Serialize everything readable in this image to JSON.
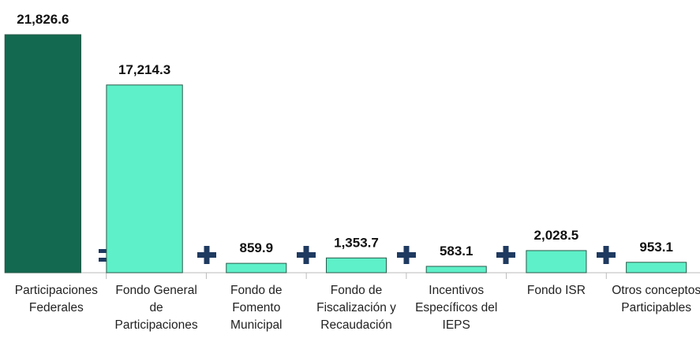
{
  "chart_data": {
    "type": "bar",
    "categories": [
      "Participaciones Federales",
      "Fondo General de Participaciones",
      "Fondo de Fomento Municipal",
      "Fondo de Fiscalización y Recaudación",
      "Incentivos Específicos del IEPS",
      "Fondo ISR",
      "Otros conceptos Participables"
    ],
    "values": [
      21826.6,
      17214.3,
      859.9,
      1353.7,
      583.1,
      2028.5,
      953.1
    ],
    "value_labels": [
      "21,826.6",
      "17,214.3",
      "859.9",
      "1,353.7",
      "583.1",
      "2,028.5",
      "953.1"
    ],
    "colors": [
      "#12694f",
      "#5ef0c8",
      "#5ef0c8",
      "#5ef0c8",
      "#5ef0c8",
      "#5ef0c8",
      "#5ef0c8"
    ]
  }
}
